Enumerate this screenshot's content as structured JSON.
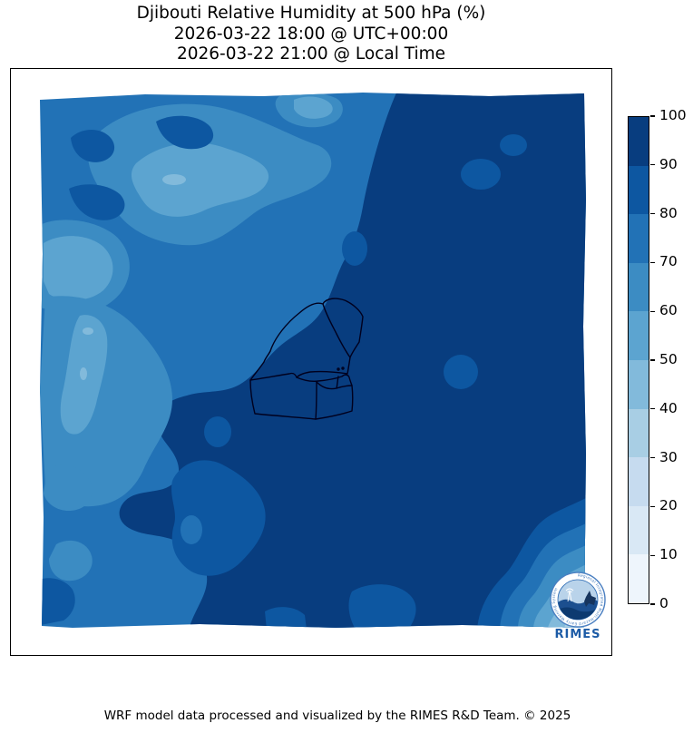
{
  "title": {
    "line1": "Djibouti Relative Humidity at 500 hPa (%)",
    "line2": "2026-03-22 18:00 @ UTC+00:00",
    "line3": "2026-03-22 21:00 @ Local Time"
  },
  "footer": {
    "credit": "WRF model data processed and visualized by the RIMES R&D Team. © 2025"
  },
  "logo": {
    "org": "RIMES",
    "ring_text": "Regional Integrated Multi-Hazard Early Warning System"
  },
  "chart_data": {
    "type": "heatmap",
    "subtype": "filled-contour weather map",
    "title": "Djibouti Relative Humidity at 500 hPa (%)",
    "variable": "relative humidity",
    "pressure_level_hPa": 500,
    "units": "%",
    "valid_time_utc": "2026-03-22 18:00 @ UTC+00:00",
    "valid_time_local": "2026-03-22 21:00 @ Local Time",
    "region": "Djibouti and surroundings (WRF model domain)",
    "overlay": "Djibouti national and regional administrative boundaries",
    "grid": false,
    "axis_tick_labels": false,
    "colorbar": {
      "orientation": "vertical",
      "position": "right",
      "min": 0,
      "max": 100,
      "ticks": [
        0,
        10,
        20,
        30,
        40,
        50,
        60,
        70,
        80,
        90,
        100
      ],
      "colors": [
        "#eef5fc",
        "#d9e8f5",
        "#c6dbef",
        "#a8cee4",
        "#82badb",
        "#5ca4d0",
        "#3c8cc3",
        "#2272b6",
        "#0d57a1",
        "#083d7f"
      ]
    },
    "field_pattern": {
      "eastern_half": "90-100 % (darkest blue), covering Djibouti itself",
      "western_half": "mostly 70-80 % base",
      "northwest_and_west_bands": "diagonal bands of 60-70 % with 50-60 % cores",
      "scattered_patches": "small 80-90 % patches in the west and along the bottom",
      "southeast_corner": "concentric gradient decreasing to 30-40 % at the corner"
    }
  }
}
